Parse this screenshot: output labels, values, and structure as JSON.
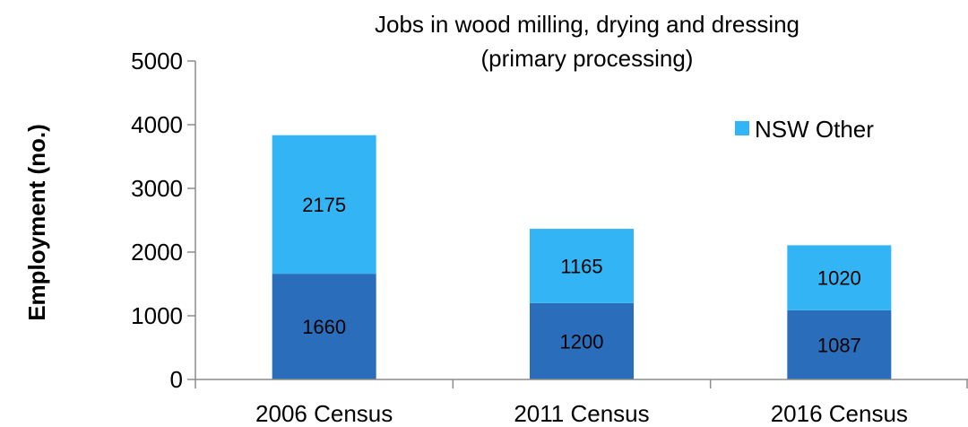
{
  "chart_data": {
    "type": "bar",
    "stacked": true,
    "title": [
      "Jobs in wood milling, drying and dressing",
      "(primary processing)"
    ],
    "xlabel": "",
    "ylabel": "Employment (no.)",
    "ylim": [
      0,
      5000
    ],
    "yticks": [
      0,
      1000,
      2000,
      3000,
      4000,
      5000
    ],
    "categories": [
      "2006 Census",
      "2011 Census",
      "2016 Census"
    ],
    "series": [
      {
        "values": [
          1660,
          1200,
          1087
        ],
        "color": "#2a6ebb"
      },
      {
        "name": "NSW Other",
        "values": [
          2175,
          1165,
          1020
        ],
        "color": "#33b5f5"
      }
    ],
    "legend": {
      "position": "top-right",
      "entries": [
        "NSW Other"
      ]
    },
    "grid": false
  }
}
